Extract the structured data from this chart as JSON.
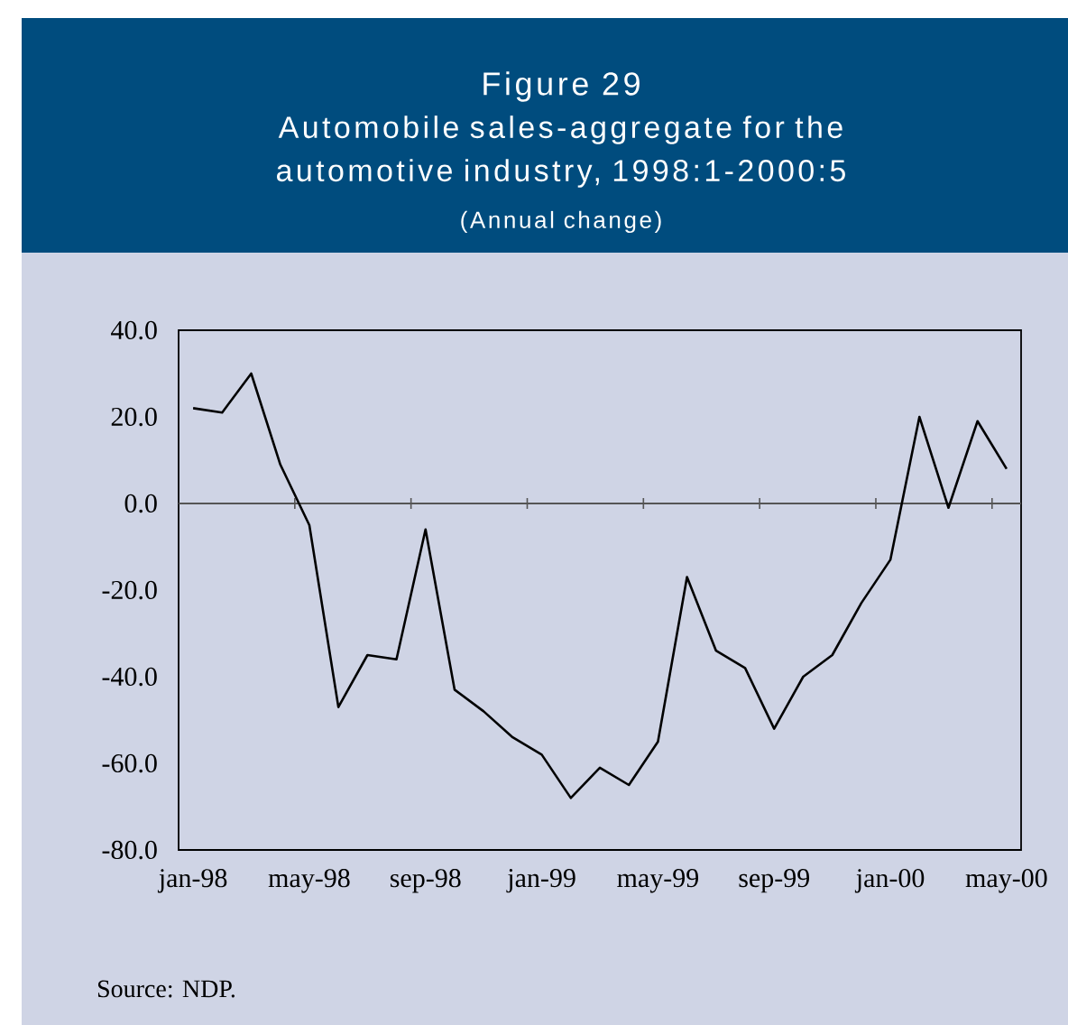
{
  "chart_data": {
    "type": "line",
    "title": "Figure 29",
    "subtitle": "Automobile sales-aggregate for the automotive industry, 1998:1-2000:5",
    "ylabel": "(Annual change)",
    "annotations": [
      "Source: NDP."
    ],
    "categories": [
      "jan-98",
      null,
      null,
      null,
      "may-98",
      null,
      null,
      null,
      "sep-98",
      null,
      null,
      null,
      "jan-99",
      null,
      null,
      null,
      "may-99",
      null,
      null,
      null,
      "sep-99",
      null,
      null,
      null,
      "jan-00",
      null,
      null,
      null,
      "may-00"
    ],
    "series": [
      {
        "color": "#000000",
        "values": [
          22,
          21,
          30,
          9,
          -5,
          -47,
          -35,
          -36,
          -6,
          -43,
          -48,
          -54,
          -58,
          -68,
          -61,
          -65,
          -55,
          -17,
          -34,
          -38,
          -52,
          -40,
          -35,
          -23,
          -13,
          20,
          -1,
          19,
          8
        ]
      }
    ],
    "ylim": [
      -80,
      40
    ],
    "yticks": [
      {
        "value": -80,
        "label": "-80.0"
      },
      {
        "value": -60,
        "label": "-60.0"
      },
      {
        "value": -40,
        "label": "-40.0"
      },
      {
        "value": -20,
        "label": "-20.0"
      },
      {
        "value": 0,
        "label": "0.0"
      },
      {
        "value": 20,
        "label": "20.0"
      },
      {
        "value": 40,
        "label": "40.0"
      }
    ],
    "marker": "none",
    "line_style": "solid"
  }
}
